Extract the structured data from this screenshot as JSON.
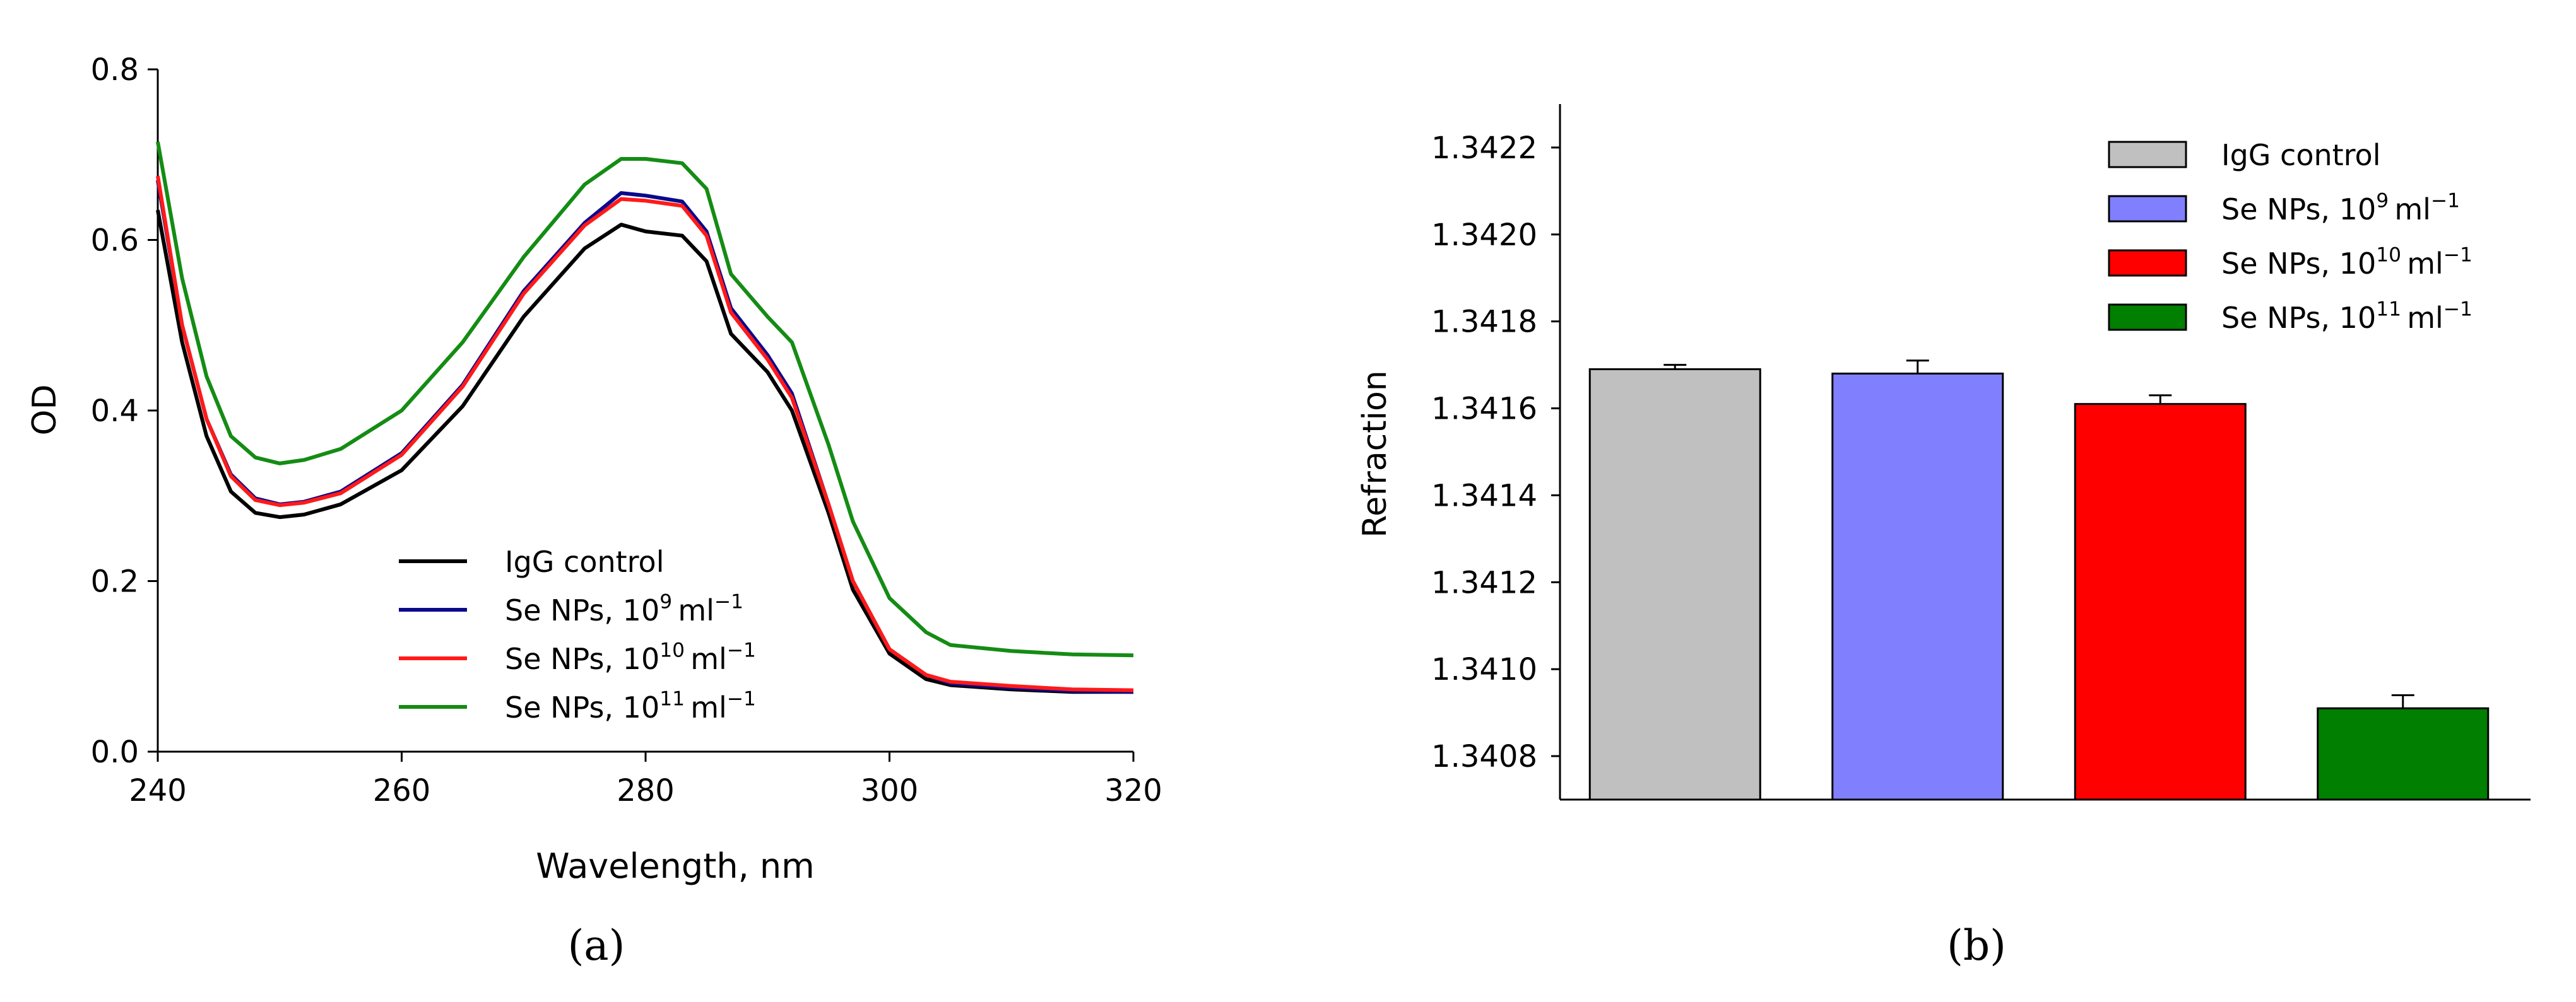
{
  "panels": [
    {
      "id": "a",
      "caption": "(a)"
    },
    {
      "id": "b",
      "caption": "(b)"
    }
  ],
  "chart_data": [
    {
      "type": "line",
      "xlabel": "Wavelength, nm",
      "ylabel": "OD",
      "xlim": [
        240,
        320
      ],
      "ylim": [
        0.0,
        0.8
      ],
      "xticks": [
        "240",
        "260",
        "280",
        "300",
        "320"
      ],
      "yticks": [
        "0.0",
        "0.2",
        "0.4",
        "0.6",
        "0.8"
      ],
      "legend_position": "lower-center",
      "x": [
        240,
        242,
        244,
        246,
        248,
        250,
        252,
        255,
        260,
        265,
        270,
        275,
        278,
        280,
        283,
        285,
        287,
        290,
        292,
        295,
        297,
        300,
        303,
        305,
        310,
        315,
        320
      ],
      "series": [
        {
          "name": "IgG control",
          "base": "IgG control",
          "color": "#000000",
          "values": [
            0.635,
            0.48,
            0.37,
            0.305,
            0.28,
            0.275,
            0.278,
            0.29,
            0.33,
            0.405,
            0.51,
            0.59,
            0.618,
            0.61,
            0.605,
            0.575,
            0.49,
            0.445,
            0.4,
            0.28,
            0.19,
            0.115,
            0.085,
            0.078,
            0.073,
            0.07,
            0.07
          ]
        },
        {
          "name": "Se NPs, 10^9 ml^-1",
          "base": "Se NPs, 10",
          "sup1": "9",
          "unit": "ml",
          "sup2": "−1",
          "color": "#0a0a8c",
          "values": [
            0.67,
            0.5,
            0.39,
            0.325,
            0.297,
            0.29,
            0.293,
            0.305,
            0.35,
            0.43,
            0.54,
            0.62,
            0.655,
            0.652,
            0.645,
            0.61,
            0.52,
            0.465,
            0.42,
            0.29,
            0.2,
            0.12,
            0.09,
            0.08,
            0.075,
            0.071,
            0.07
          ]
        },
        {
          "name": "Se NPs, 10^10 ml^-1",
          "base": "Se NPs, 10",
          "sup1": "10",
          "unit": "ml",
          "sup2": "−1",
          "color": "#ff1a1a",
          "values": [
            0.675,
            0.5,
            0.39,
            0.323,
            0.295,
            0.289,
            0.292,
            0.303,
            0.348,
            0.428,
            0.537,
            0.617,
            0.648,
            0.646,
            0.64,
            0.605,
            0.515,
            0.46,
            0.415,
            0.29,
            0.2,
            0.12,
            0.09,
            0.082,
            0.077,
            0.073,
            0.072
          ]
        },
        {
          "name": "Se NPs, 10^11 ml^-1",
          "base": "Se NPs, 10",
          "sup1": "11",
          "unit": "ml",
          "sup2": "−1",
          "color": "#148c14",
          "values": [
            0.715,
            0.555,
            0.44,
            0.37,
            0.345,
            0.338,
            0.342,
            0.355,
            0.4,
            0.48,
            0.58,
            0.665,
            0.695,
            0.695,
            0.69,
            0.66,
            0.56,
            0.51,
            0.48,
            0.36,
            0.27,
            0.18,
            0.14,
            0.125,
            0.118,
            0.114,
            0.113
          ]
        }
      ]
    },
    {
      "type": "bar",
      "ylabel": "Refraction",
      "ylim": [
        1.3407,
        1.3423
      ],
      "yticks": [
        "1.3408",
        "1.3410",
        "1.3412",
        "1.3414",
        "1.3416",
        "1.3418",
        "1.3420",
        "1.3422"
      ],
      "legend_position": "top-right",
      "categories": [
        "IgG control",
        "Se NPs, 10^9 ml^-1",
        "Se NPs, 10^10 ml^-1",
        "Se NPs, 10^11 ml^-1"
      ],
      "series": [
        {
          "name": "IgG control",
          "base": "IgG control",
          "color": "#c0c0c0",
          "value": 1.34169,
          "error": 1e-05
        },
        {
          "name": "Se NPs, 10^9 ml^-1",
          "base": "Se NPs, 10",
          "sup1": "9",
          "unit": "ml",
          "sup2": "−1",
          "color": "#8080ff",
          "value": 1.34168,
          "error": 3e-05
        },
        {
          "name": "Se NPs, 10^10 ml^-1",
          "base": "Se NPs, 10",
          "sup1": "10",
          "unit": "ml",
          "sup2": "−1",
          "color": "#ff0000",
          "value": 1.34161,
          "error": 2e-05
        },
        {
          "name": "Se NPs, 10^11 ml^-1",
          "base": "Se NPs, 10",
          "sup1": "11",
          "unit": "ml",
          "sup2": "−1",
          "color": "#007f00",
          "value": 1.34091,
          "error": 3e-05
        }
      ]
    }
  ]
}
